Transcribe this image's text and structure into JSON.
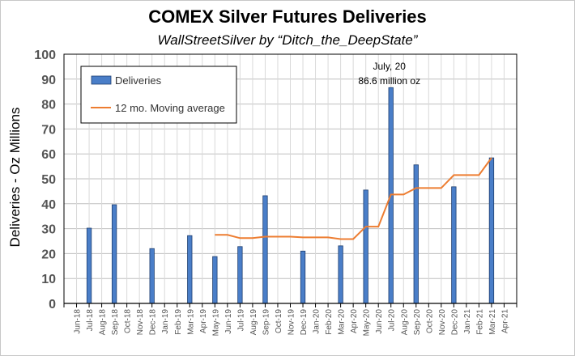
{
  "chart_data": {
    "type": "bar",
    "title": "COMEX Silver Futures Deliveries",
    "subtitle": "WallStreetSilver  by “Ditch_the_DeepState”",
    "ylabel": "Deliveries - Oz Millions",
    "xlabel": "",
    "ylim": [
      0,
      100
    ],
    "yticks": [
      0,
      10,
      20,
      30,
      40,
      50,
      60,
      70,
      80,
      90,
      100
    ],
    "grid": true,
    "legend_position": "top-left",
    "categories": [
      "Jun-18",
      "Jul-18",
      "Aug-18",
      "Sep-18",
      "Oct-18",
      "Nov-18",
      "Dec-18",
      "Jan-19",
      "Feb-19",
      "Mar-19",
      "Apr-19",
      "May-19",
      "Jun-19",
      "Jul-19",
      "Aug-19",
      "Sep-19",
      "Oct-19",
      "Nov-19",
      "Dec-19",
      "Jan-20",
      "Feb-20",
      "Mar-20",
      "Apr-20",
      "May-20",
      "Jun-20",
      "Jul-20",
      "Aug-20",
      "Sep-20",
      "Oct-20",
      "Nov-20",
      "Dec-20",
      "Jan-21",
      "Feb-21",
      "Mar-21",
      "Apr-21"
    ],
    "bar_slot_offset": 1,
    "series": [
      {
        "name": "Deliveries",
        "kind": "bar",
        "color": "#4a7ec8",
        "values": [
          null,
          30.2,
          null,
          39.6,
          null,
          null,
          22.0,
          null,
          null,
          27.2,
          null,
          18.8,
          null,
          22.8,
          null,
          43.2,
          null,
          null,
          21.0,
          null,
          null,
          23.1,
          null,
          45.5,
          null,
          86.6,
          null,
          55.6,
          null,
          null,
          46.8,
          null,
          null,
          58.4,
          null
        ]
      },
      {
        "name": "12 mo. Moving average",
        "kind": "line",
        "color": "#ed7d31",
        "values": [
          null,
          null,
          null,
          null,
          null,
          null,
          null,
          null,
          null,
          null,
          null,
          27.5,
          27.5,
          26.2,
          26.2,
          26.8,
          26.8,
          26.8,
          26.5,
          26.5,
          26.5,
          25.8,
          25.8,
          30.8,
          30.8,
          43.7,
          43.7,
          46.3,
          46.3,
          46.3,
          51.5,
          51.5,
          51.5,
          58.4,
          null
        ]
      }
    ],
    "annotations": [
      {
        "text_line1": "July, 20",
        "text_line2": "86.6 million oz",
        "category": "Jul-20"
      }
    ]
  }
}
